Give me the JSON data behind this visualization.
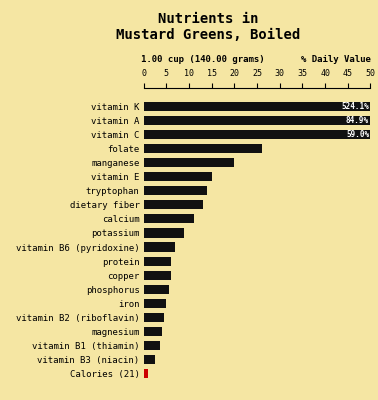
{
  "title": "Nutrients in\nMustard Greens, Boiled",
  "subtitle_left": "1.00 cup (140.00 grams)",
  "subtitle_right": "% Daily Value",
  "background_color": "#f5e6a3",
  "bar_color": "#111111",
  "categories": [
    "vitamin K",
    "vitamin A",
    "vitamin C",
    "folate",
    "manganese",
    "vitamin E",
    "tryptophan",
    "dietary fiber",
    "calcium",
    "potassium",
    "vitamin B6 (pyridoxine)",
    "protein",
    "copper",
    "phosphorus",
    "iron",
    "vitamin B2 (riboflavin)",
    "magnesium",
    "vitamin B1 (thiamin)",
    "vitamin B3 (niacin)",
    "Calories (21)"
  ],
  "values": [
    50,
    50,
    50,
    26,
    20,
    15,
    14,
    13,
    11,
    9,
    7,
    6,
    6,
    5.5,
    5,
    4.5,
    4,
    3.5,
    2.5,
    1
  ],
  "labels": [
    "524.1%",
    "84.9%",
    "59.0%",
    "",
    "",
    "",
    "",
    "",
    "",
    "",
    "",
    "",
    "",
    "",
    "",
    "",
    "",
    "",
    "",
    ""
  ],
  "calories_color": "#cc0000",
  "xmax": 50,
  "xticks": [
    0,
    5,
    10,
    15,
    20,
    25,
    30,
    35,
    40,
    45,
    50
  ]
}
